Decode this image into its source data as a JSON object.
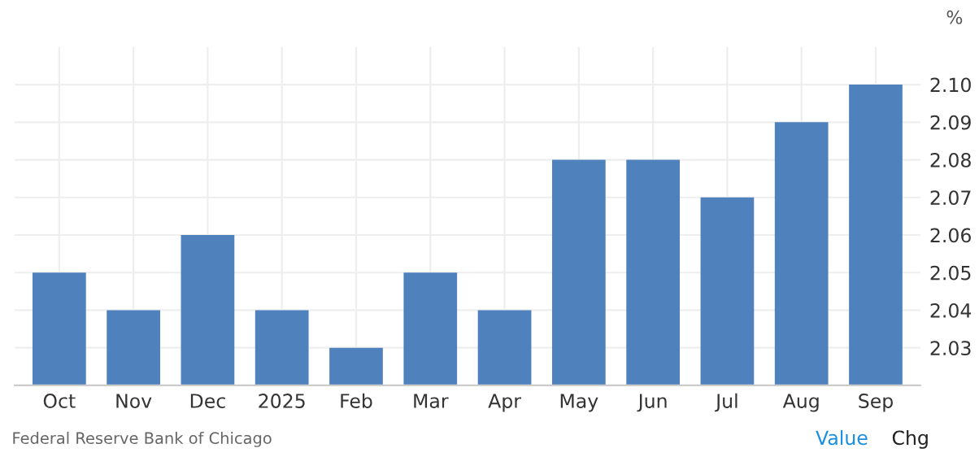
{
  "chart_data": {
    "type": "bar",
    "ylabel": "%",
    "categories": [
      "Oct",
      "Nov",
      "Dec",
      "2025",
      "Feb",
      "Mar",
      "Apr",
      "May",
      "Jun",
      "Jul",
      "Aug",
      "Sep"
    ],
    "values": [
      2.05,
      2.04,
      2.06,
      2.04,
      2.03,
      2.05,
      2.04,
      2.08,
      2.08,
      2.07,
      2.09,
      2.1
    ],
    "color": "#4f81bd",
    "ylim": [
      2.02,
      2.11
    ],
    "yticks": [
      {
        "value": 2.03,
        "label": "2.03"
      },
      {
        "value": 2.04,
        "label": "2.04"
      },
      {
        "value": 2.05,
        "label": "2.05"
      },
      {
        "value": 2.06,
        "label": "2.06"
      },
      {
        "value": 2.07,
        "label": "2.07"
      },
      {
        "value": 2.08,
        "label": "2.08"
      },
      {
        "value": 2.09,
        "label": "2.09"
      },
      {
        "value": 2.1,
        "label": "2.10"
      }
    ],
    "grid": true,
    "legend": false,
    "annotations": [
      "Federal Reserve Bank of Chicago",
      "Value",
      "Chg"
    ]
  }
}
